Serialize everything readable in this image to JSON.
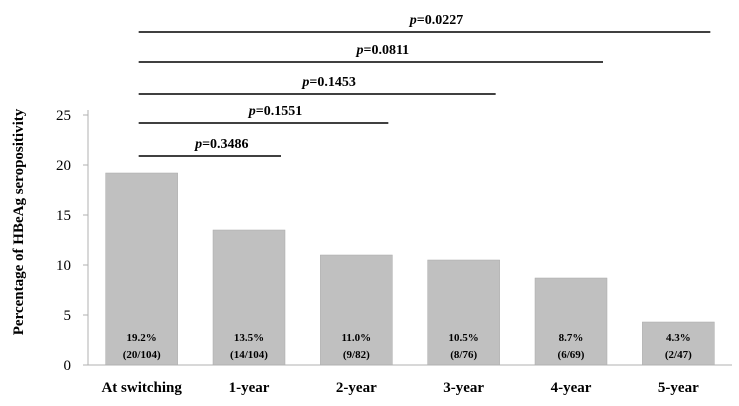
{
  "chart_data": {
    "type": "bar",
    "ylabel": "Percentage of HBeAg seropositivity",
    "ylim": [
      0,
      25
    ],
    "yticks": [
      0,
      5,
      10,
      15,
      20,
      25
    ],
    "grid": false,
    "colors": {
      "bar": "#c0c0c0",
      "bar_stroke": "#a8a8a8",
      "axis": "#b0b0b0",
      "text": "#000000",
      "bracket": "#000000"
    },
    "categories": [
      "At switching",
      "1-year",
      "2-year",
      "3-year",
      "4-year",
      "5-year"
    ],
    "values": [
      19.2,
      13.5,
      11.0,
      10.5,
      8.7,
      4.3
    ],
    "data_labels": [
      {
        "pct": "19.2%",
        "frac": "(20/104)"
      },
      {
        "pct": "13.5%",
        "frac": "(14/104)"
      },
      {
        "pct": "11.0%",
        "frac": "(9/82)"
      },
      {
        "pct": "10.5%",
        "frac": "(8/76)"
      },
      {
        "pct": "8.7%",
        "frac": "(6/69)"
      },
      {
        "pct": "4.3%",
        "frac": "(2/47)"
      }
    ],
    "comparisons": [
      {
        "from": "At switching",
        "to": "1-year",
        "p_prefix": "p",
        "p_value": "=0.3486"
      },
      {
        "from": "At switching",
        "to": "2-year",
        "p_prefix": "p",
        "p_value": "=0.1551"
      },
      {
        "from": "At switching",
        "to": "3-year",
        "p_prefix": "p",
        "p_value": "=0.1453"
      },
      {
        "from": "At switching",
        "to": "4-year",
        "p_prefix": "p",
        "p_value": "=0.0811"
      },
      {
        "from": "At switching",
        "to": "5-year",
        "p_prefix": "p",
        "p_value": "=0.0227"
      }
    ]
  }
}
